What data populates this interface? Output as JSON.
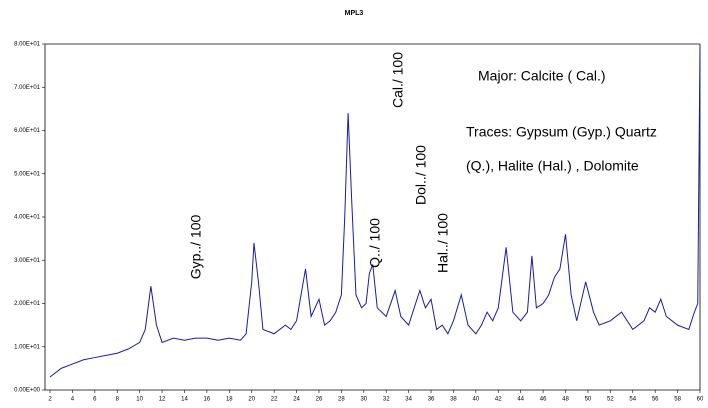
{
  "chart_data": {
    "type": "line",
    "title": "MPL3",
    "x": [
      2,
      3,
      4,
      5,
      6,
      7,
      8,
      9,
      10,
      10.5,
      11,
      11.5,
      12,
      13,
      14,
      15,
      16,
      17,
      18,
      19,
      19.5,
      20,
      20.2,
      20.6,
      21,
      22,
      23,
      23.5,
      24,
      24.8,
      25.3,
      26,
      26.5,
      27,
      27.5,
      28,
      28.3,
      28.6,
      28.9,
      29.3,
      29.8,
      30.2,
      30.5,
      30.8,
      31.2,
      32,
      32.8,
      33.3,
      34,
      35,
      35.5,
      36,
      36.5,
      37,
      37.5,
      38,
      38.7,
      39.3,
      40,
      40.5,
      41,
      41.5,
      42,
      42.7,
      43.3,
      44,
      44.6,
      45,
      45.4,
      46,
      46.5,
      47,
      47.5,
      48,
      48.5,
      49,
      49.8,
      50.5,
      51,
      52,
      53,
      54,
      55,
      55.5,
      56,
      56.5,
      57,
      57.5,
      58,
      59,
      59.5,
      59.8,
      60
    ],
    "series": [
      {
        "color": "#1c1c9c",
        "values": [
          3,
          5,
          6,
          7,
          7.5,
          8,
          8.5,
          9.5,
          11,
          14,
          24,
          15,
          11,
          12,
          11.5,
          12,
          12,
          11.5,
          12,
          11.5,
          13,
          25,
          34,
          25,
          14,
          13,
          15,
          14,
          16,
          28,
          17,
          21,
          15,
          16,
          18,
          22,
          40,
          64,
          45,
          22,
          19,
          20,
          27,
          29,
          19,
          17,
          23,
          17,
          15,
          23,
          19,
          21,
          14,
          15,
          13,
          16,
          22,
          15,
          13,
          15,
          18,
          16,
          19,
          33,
          18,
          16,
          18,
          31,
          19,
          20,
          22,
          26,
          28,
          36,
          22,
          16,
          25,
          18,
          15,
          16,
          18,
          14,
          16,
          19,
          18,
          21,
          17,
          16,
          15,
          14,
          18,
          20,
          80
        ]
      }
    ],
    "xlim": [
      2,
      60
    ],
    "ylim": [
      0,
      80
    ],
    "xticks": [
      2,
      4,
      6,
      8,
      10,
      12,
      14,
      16,
      18,
      20,
      22,
      24,
      26,
      28,
      30,
      32,
      34,
      36,
      38,
      40,
      42,
      44,
      46,
      48,
      50,
      52,
      54,
      56,
      58,
      60
    ],
    "yticks": [
      {
        "value": 0,
        "label": "0.00E+00"
      },
      {
        "value": 10,
        "label": "1.00E+01"
      },
      {
        "value": 20,
        "label": "2.00E+01"
      },
      {
        "value": 30,
        "label": "3.00E+01"
      },
      {
        "value": 40,
        "label": "4.00E+01"
      },
      {
        "value": 50,
        "label": "5.00E+01"
      },
      {
        "value": 60,
        "label": "6.00E+01"
      },
      {
        "value": 70,
        "label": "7.00E+01"
      },
      {
        "value": 80,
        "label": "8.00E+01"
      }
    ],
    "annotations": [
      "Gyp../ 100",
      "Q../ 100",
      "Cal./ 100",
      "Dol../ 100",
      "Hal../ 100"
    ],
    "legend_text": [
      "Major: Calcite ( Cal.)",
      "Traces: Gypsum (Gyp.) Quartz",
      "(Q.), Halite (Hal.) , Dolomite"
    ]
  }
}
